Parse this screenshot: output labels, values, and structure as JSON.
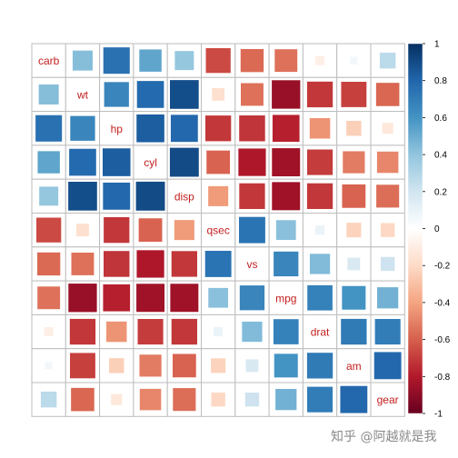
{
  "chart_data": {
    "type": "heatmap",
    "variables": [
      "carb",
      "wt",
      "hp",
      "cyl",
      "disp",
      "qsec",
      "vs",
      "mpg",
      "drat",
      "am",
      "gear"
    ],
    "matrix": [
      [
        1.0,
        0.43,
        0.75,
        0.53,
        0.39,
        -0.66,
        -0.57,
        -0.55,
        -0.09,
        0.06,
        0.27
      ],
      [
        0.43,
        1.0,
        0.66,
        0.78,
        0.89,
        -0.17,
        -0.55,
        -0.87,
        -0.71,
        -0.69,
        -0.58
      ],
      [
        0.75,
        0.66,
        1.0,
        0.83,
        0.79,
        -0.71,
        -0.72,
        -0.78,
        -0.45,
        -0.24,
        -0.13
      ],
      [
        0.53,
        0.78,
        0.83,
        1.0,
        0.9,
        -0.59,
        -0.81,
        -0.85,
        -0.7,
        -0.52,
        -0.49
      ],
      [
        0.39,
        0.89,
        0.79,
        0.9,
        1.0,
        -0.43,
        -0.71,
        -0.85,
        -0.71,
        -0.59,
        -0.56
      ],
      [
        -0.66,
        -0.17,
        -0.71,
        -0.59,
        -0.43,
        1.0,
        0.74,
        0.42,
        0.09,
        -0.23,
        -0.21
      ],
      [
        -0.57,
        -0.55,
        -0.72,
        -0.81,
        -0.71,
        0.74,
        1.0,
        0.66,
        0.44,
        0.17,
        0.21
      ],
      [
        -0.55,
        -0.87,
        -0.78,
        -0.85,
        -0.85,
        0.42,
        0.66,
        1.0,
        0.68,
        0.6,
        0.48
      ],
      [
        -0.09,
        -0.71,
        -0.45,
        -0.7,
        -0.71,
        0.09,
        0.44,
        0.68,
        1.0,
        0.71,
        0.7
      ],
      [
        0.06,
        -0.69,
        -0.24,
        -0.52,
        -0.59,
        -0.23,
        0.17,
        0.6,
        0.71,
        1.0,
        0.79
      ],
      [
        0.27,
        -0.58,
        -0.13,
        -0.49,
        -0.56,
        -0.21,
        0.21,
        0.48,
        0.7,
        0.79,
        1.0
      ]
    ],
    "colorbar": {
      "range": [
        -1,
        1
      ],
      "ticks": [
        "1",
        "0.8",
        "0.6",
        "0.4",
        "0.2",
        "0",
        "-0.2",
        "-0.4",
        "-0.6",
        "-0.8",
        "-1"
      ]
    },
    "label_color": "#c41e1e",
    "colors": [
      "#67001f",
      "#b2182b",
      "#d6604d",
      "#f4a582",
      "#fddbc7",
      "#ffffff",
      "#d1e5f0",
      "#92c5de",
      "#4393c3",
      "#2166ac",
      "#053061"
    ]
  },
  "watermark": "知乎 @阿越就是我"
}
